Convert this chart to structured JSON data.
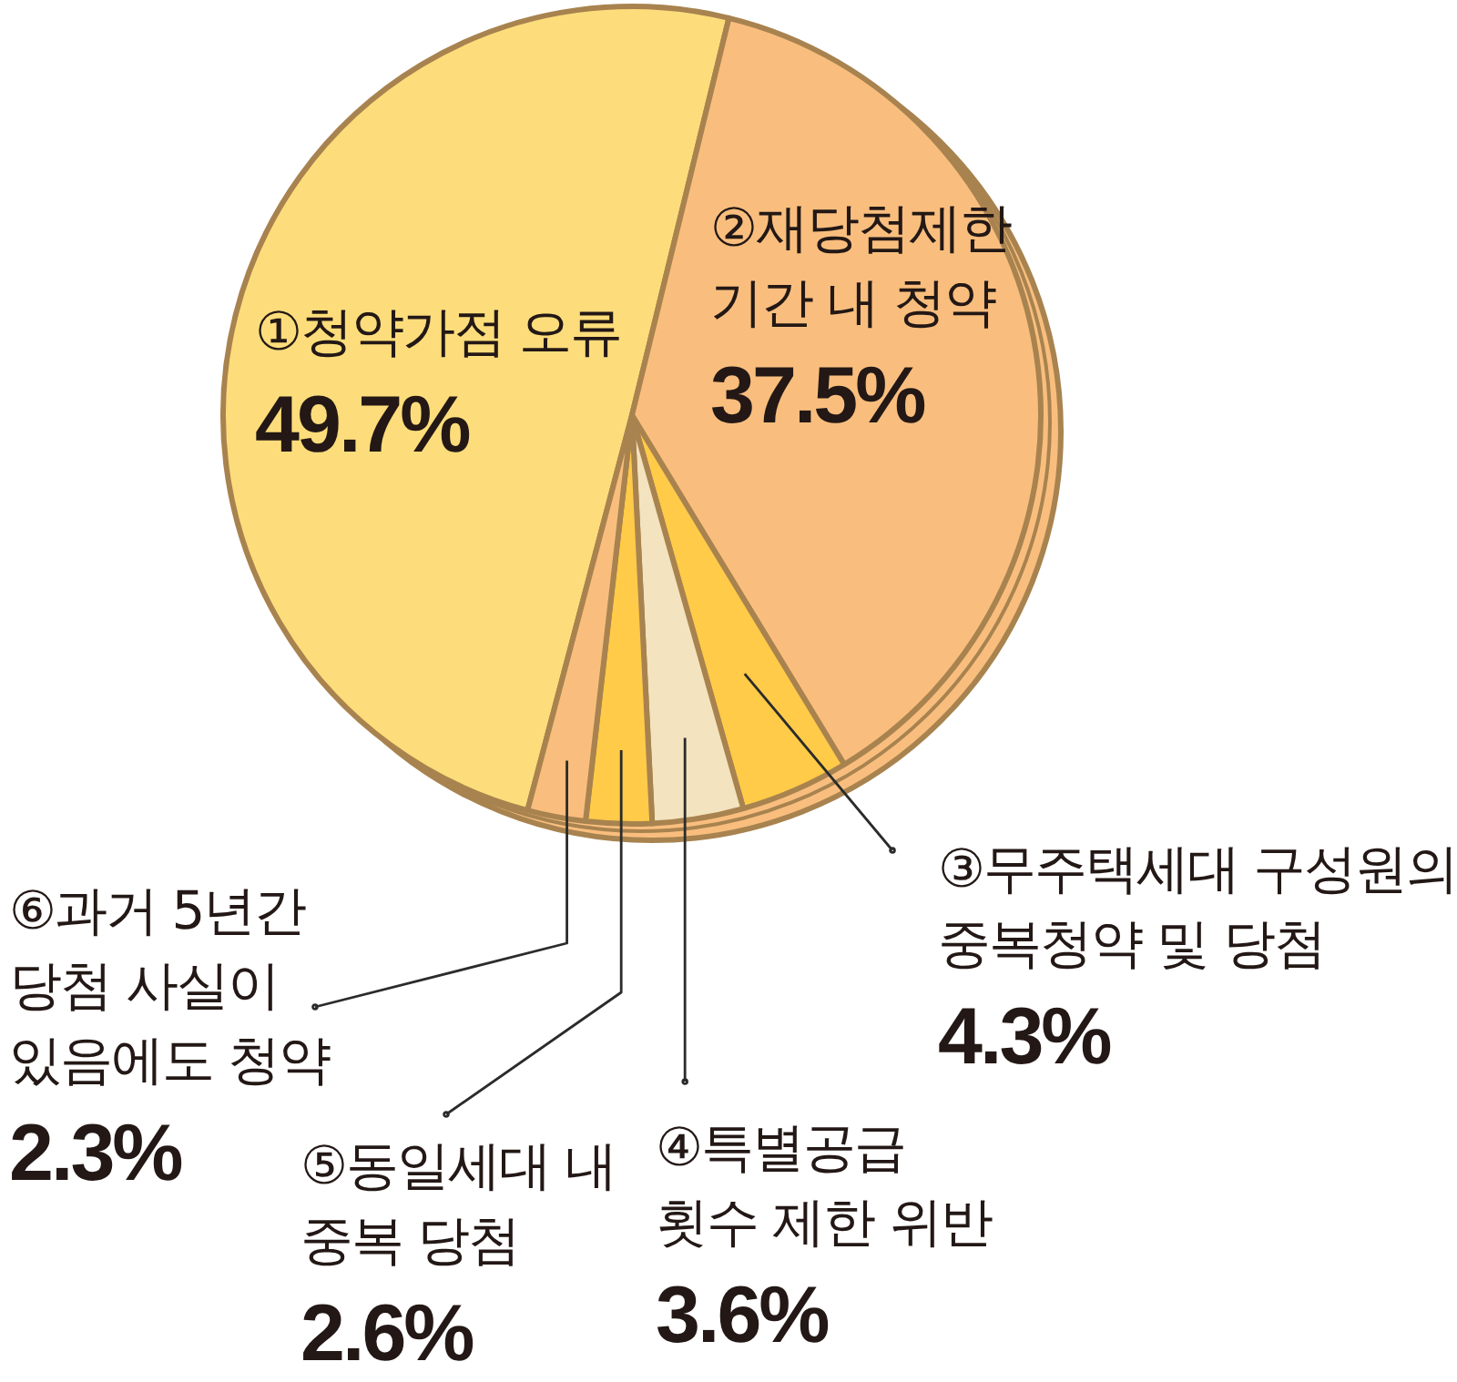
{
  "chart_data": {
    "type": "pie",
    "categories": [
      "①청약가점 오류",
      "②재당첨제한\n기간 내 청약",
      "③무주택세대 구성원의\n중복청약 및 당첨",
      "④특별공급\n횟수 제한 위반",
      "⑤동일세대 내\n중복 당첨",
      "⑥과거 5년간\n당첨 사실이\n있음에도 청약"
    ],
    "values": [
      49.7,
      37.5,
      4.3,
      3.6,
      2.6,
      2.3
    ],
    "colors": [
      "#fddd7b",
      "#f9be7e",
      "#ffcb48",
      "#f3e3be",
      "#ffcb48",
      "#f9be7e"
    ],
    "value_labels": [
      "49.7%",
      "37.5%",
      "4.3%",
      "3.6%",
      "2.6%",
      "2.3%"
    ]
  }
}
